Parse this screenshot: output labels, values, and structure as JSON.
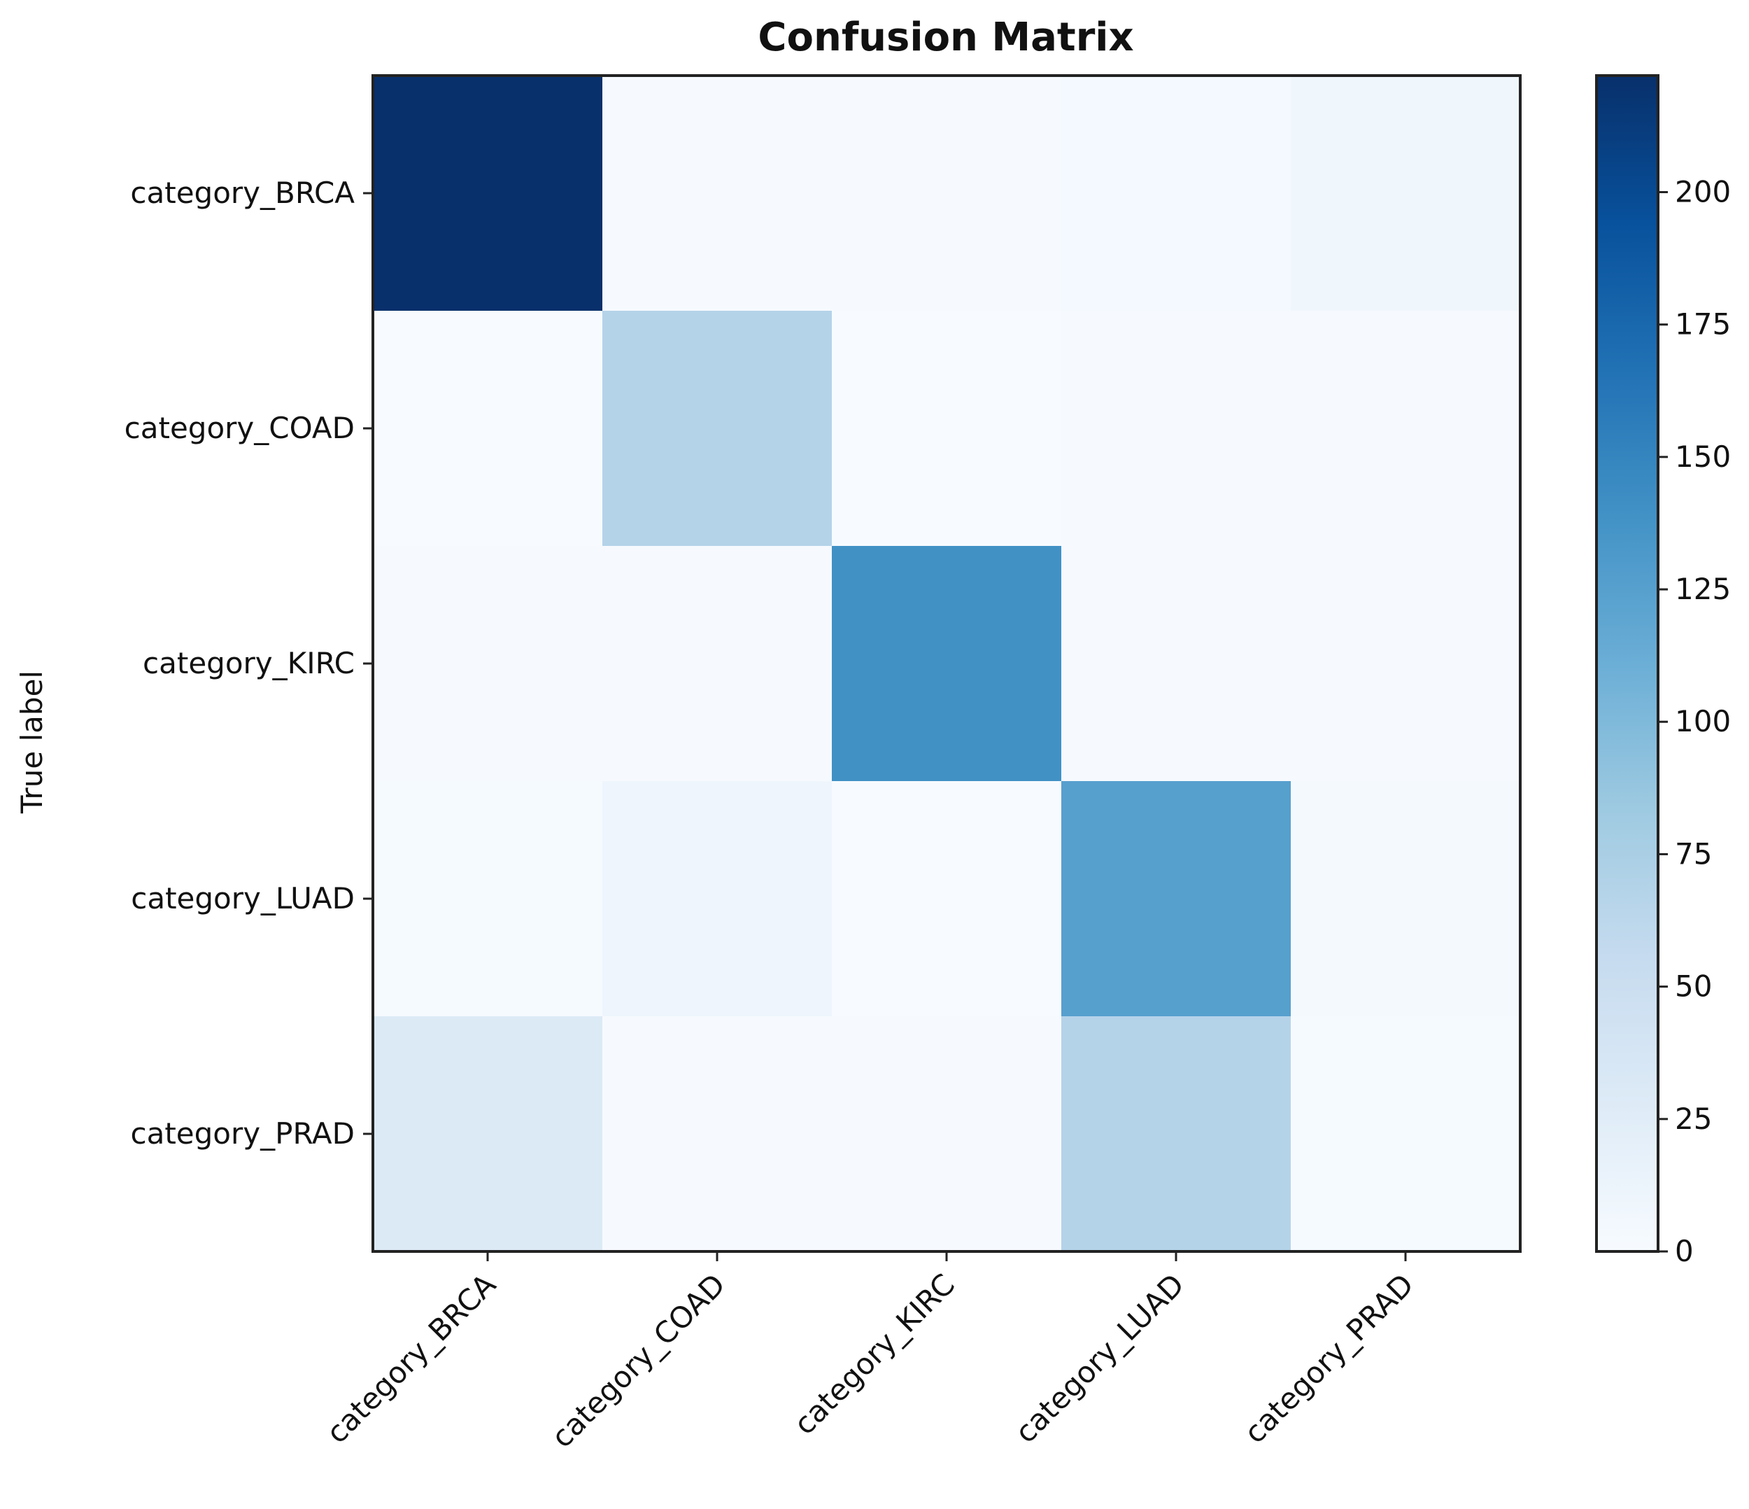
{
  "chart_data": {
    "type": "heatmap",
    "title": "Confusion Matrix",
    "ylabel": "True label",
    "xlabel": "",
    "row_labels": [
      "category_BRCA",
      "category_COAD",
      "category_KIRC",
      "category_LUAD",
      "category_PRAD"
    ],
    "col_labels": [
      "category_BRCA",
      "category_COAD",
      "category_KIRC",
      "category_LUAD",
      "category_PRAD"
    ],
    "matrix": [
      [
        222,
        1,
        1,
        4,
        9
      ],
      [
        0,
        68,
        0,
        1,
        1
      ],
      [
        1,
        1,
        140,
        1,
        1
      ],
      [
        2,
        10,
        0,
        125,
        3
      ],
      [
        30,
        1,
        1,
        68,
        2
      ]
    ],
    "colorbar": {
      "min": 0,
      "max": 222,
      "ticks": [
        0,
        25,
        50,
        75,
        100,
        125,
        150,
        175,
        200
      ],
      "colormap": "Blues"
    }
  }
}
